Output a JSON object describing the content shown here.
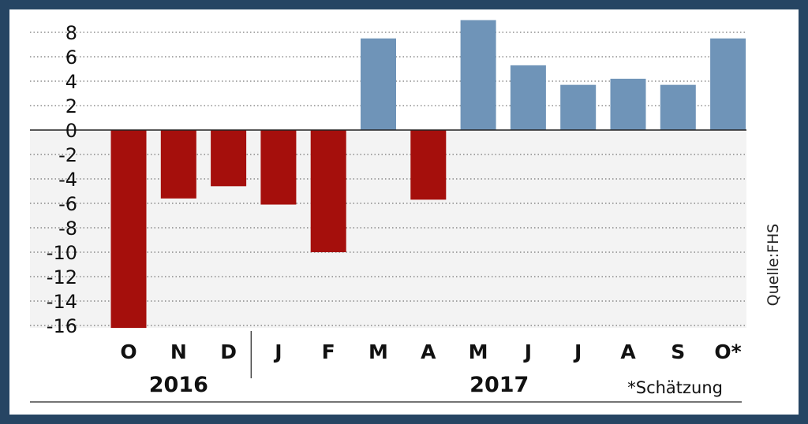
{
  "chart_data": {
    "type": "bar",
    "categories": [
      "O",
      "N",
      "D",
      "J",
      "F",
      "M",
      "A",
      "M",
      "J",
      "J",
      "A",
      "S",
      "O*"
    ],
    "values": [
      -16.2,
      -5.6,
      -4.6,
      -6.1,
      -10.0,
      7.5,
      -5.7,
      9.0,
      5.3,
      3.7,
      4.2,
      3.7,
      7.5
    ],
    "colors": {
      "positive": "#6f94b8",
      "negative": "#a50f0c"
    },
    "yticks": [
      8,
      6,
      4,
      2,
      0,
      -2,
      -4,
      -6,
      -8,
      -10,
      -12,
      -14,
      -16
    ],
    "ylim": [
      -16.2,
      9.5
    ],
    "grid": true,
    "groups": [
      {
        "label": "2016",
        "count": 3
      },
      {
        "label": "2017",
        "count": 10
      }
    ],
    "footnote": "*Schätzung",
    "source": "Quelle:FHS"
  }
}
